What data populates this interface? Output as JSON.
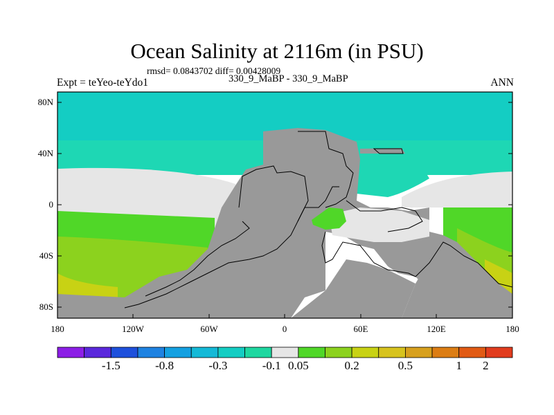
{
  "title": "Ocean Salinity at 2116m (in PSU)",
  "subtitle_line1": "rmsd= 0.0843702 diff= 0.00428009",
  "subtitle_line2": "330_9_MaBP - 330_9_MaBP",
  "left_label": "Expt = teYeo-teYdo1",
  "right_label": "ANN",
  "x_ticks": [
    "180",
    "120W",
    "60W",
    "0",
    "60E",
    "120E",
    "180"
  ],
  "y_ticks": [
    "80N",
    "40N",
    "0",
    "40S",
    "80S"
  ],
  "colorbar": {
    "colors": [
      "#8c1ee6",
      "#5a28dc",
      "#1e50dc",
      "#1e82e1",
      "#14a0e1",
      "#14b9d7",
      "#14cdc3",
      "#1ed7a0",
      "#e6e6e6",
      "#50d728",
      "#8cd21e",
      "#c8d214",
      "#d7c31e",
      "#d7a01e",
      "#dc7d14",
      "#e15a14",
      "#e13c1e"
    ],
    "labels": [
      "-1.5",
      "-0.8",
      "-0.3",
      "-0.1",
      "0.05",
      "0.2",
      "0.5",
      "1",
      "2"
    ]
  },
  "colors": {
    "land": "#999999",
    "fresh_band": "#14cdc3",
    "teal": "#1ed7b4",
    "neutral": "#e6e6e6",
    "green": "#50d728",
    "yellow_green": "#8cd21e",
    "yellow": "#c8d214"
  }
}
